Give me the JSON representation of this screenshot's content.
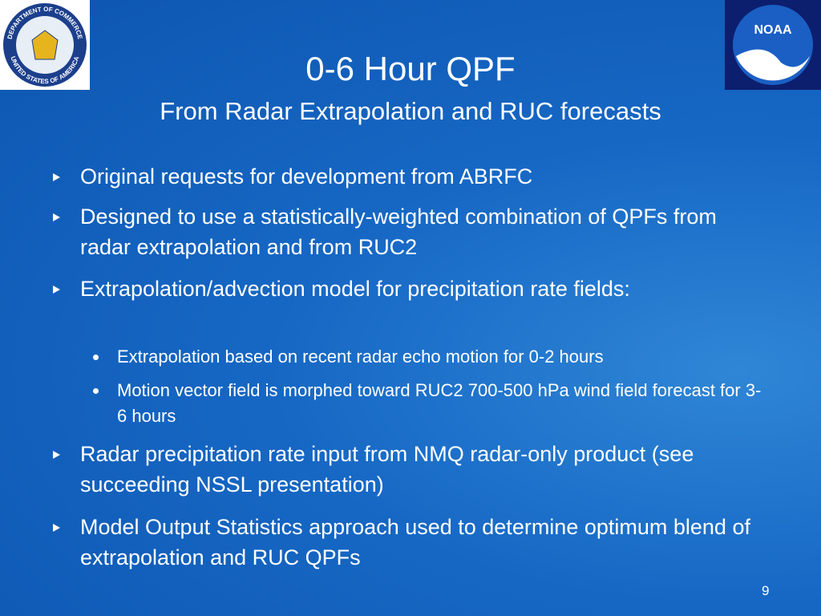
{
  "header": {
    "title": "0-6 Hour QPF",
    "subtitle": "From Radar Extrapolation and RUC forecasts"
  },
  "logos": {
    "commerce": {
      "top_text": "DEPARTMENT OF COMMERCE",
      "bottom_text": "UNITED STATES OF AMERICA"
    },
    "noaa": {
      "text": "NOAA"
    }
  },
  "bullets": [
    {
      "text": "Original requests for development from ABRFC",
      "sub": []
    },
    {
      "text": "Designed to use a statistically-weighted combination of QPFs from radar extrapolation and from RUC2",
      "sub": []
    },
    {
      "text": "Extrapolation/advection model for precipitation rate fields:",
      "sub": [
        "Extrapolation based on recent radar echo motion for 0-2 hours",
        "Motion vector field is morphed toward RUC2 700-500 hPa wind field forecast for 3-6 hours"
      ]
    },
    {
      "text": "Radar precipitation rate input from NMQ radar-only product (see succeeding NSSL presentation)",
      "sub": []
    },
    {
      "text": "Model Output Statistics approach used to determine optimum blend of extrapolation and RUC QPFs",
      "sub": []
    }
  ],
  "page_number": "9"
}
